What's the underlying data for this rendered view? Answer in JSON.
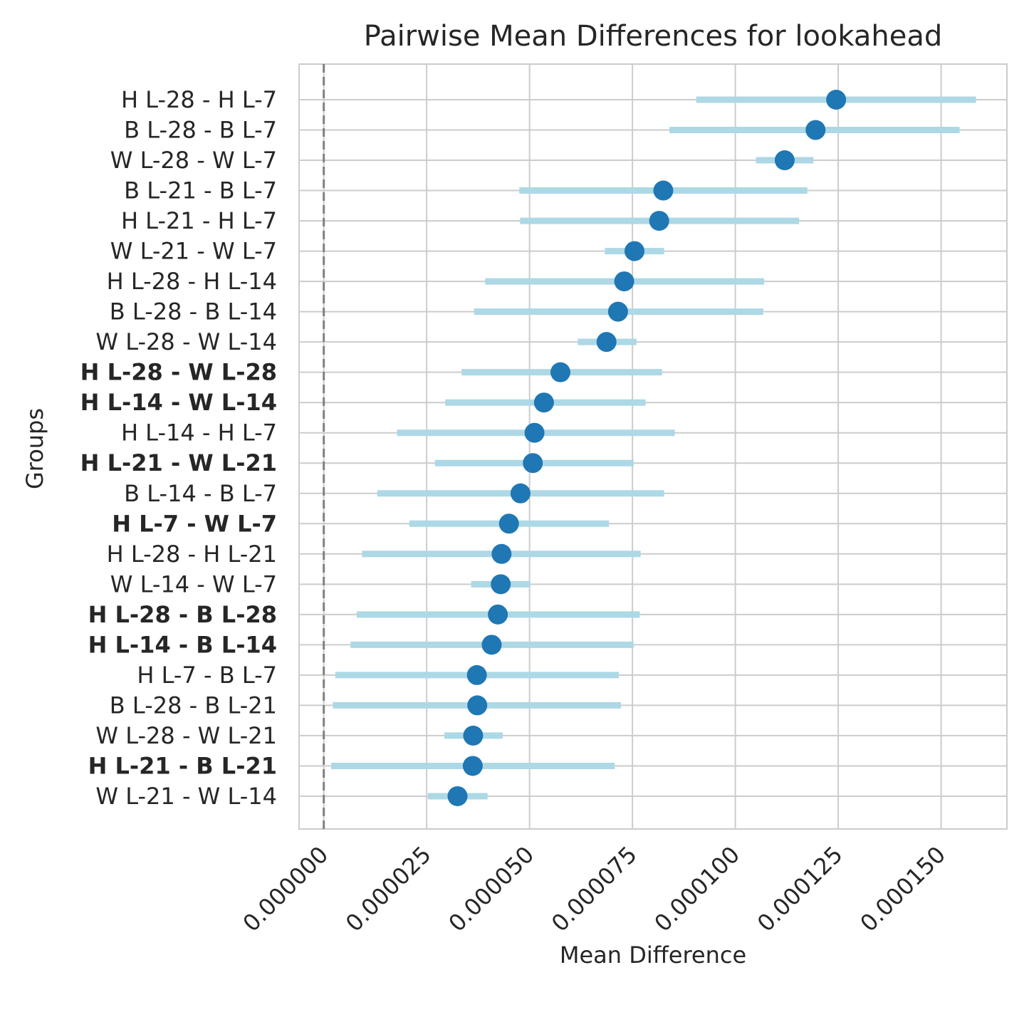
{
  "chart_data": {
    "type": "scatter",
    "subtype": "forest-plot with confidence-interval bars",
    "title": "Pairwise Mean Differences for lookahead",
    "xlabel": "Mean Difference",
    "ylabel": "Groups",
    "xlim": [
      -6e-06,
      0.000166
    ],
    "xticks": [
      0.0,
      2.5e-05,
      5e-05,
      7.5e-05,
      0.0001,
      0.000125,
      0.00015
    ],
    "xtick_labels": [
      "0.000000",
      "0.000025",
      "0.000050",
      "0.000075",
      "0.000100",
      "0.000125",
      "0.000150"
    ],
    "reference_line_x": 0.0,
    "grid": true,
    "colors": {
      "point": "#1f77b4",
      "interval": "#add8e6",
      "reference": "#808080",
      "grid": "#cccccc",
      "text": "#262626"
    },
    "groups": [
      {
        "label": "H L-28 - H L-7",
        "mean": 0.0001245,
        "lower": 9.05e-05,
        "upper": 0.0001585,
        "bold": false
      },
      {
        "label": "B L-28 - B L-7",
        "mean": 0.0001195,
        "lower": 8.4e-05,
        "upper": 0.0001545,
        "bold": false
      },
      {
        "label": "W L-28 - W L-7",
        "mean": 0.000112,
        "lower": 0.000105,
        "upper": 0.000119,
        "bold": false
      },
      {
        "label": "B L-21 - B L-7",
        "mean": 8.25e-05,
        "lower": 4.75e-05,
        "upper": 0.0001175,
        "bold": false
      },
      {
        "label": "H L-21 - H L-7",
        "mean": 8.15e-05,
        "lower": 4.77e-05,
        "upper": 0.0001155,
        "bold": false
      },
      {
        "label": "W L-21 - W L-7",
        "mean": 7.55e-05,
        "lower": 6.83e-05,
        "upper": 8.27e-05,
        "bold": false
      },
      {
        "label": "H L-28 - H L-14",
        "mean": 7.3e-05,
        "lower": 3.92e-05,
        "upper": 0.000107,
        "bold": false
      },
      {
        "label": "B L-28 - B L-14",
        "mean": 7.15e-05,
        "lower": 3.65e-05,
        "upper": 0.0001068,
        "bold": false
      },
      {
        "label": "W L-28 - W L-14",
        "mean": 6.87e-05,
        "lower": 6.17e-05,
        "upper": 7.6e-05,
        "bold": false
      },
      {
        "label": "H L-28 - W L-28",
        "mean": 5.75e-05,
        "lower": 3.35e-05,
        "upper": 8.22e-05,
        "bold": true
      },
      {
        "label": "H L-14 - W L-14",
        "mean": 5.35e-05,
        "lower": 2.95e-05,
        "upper": 7.82e-05,
        "bold": true
      },
      {
        "label": "H L-14 - H L-7",
        "mean": 5.12e-05,
        "lower": 1.78e-05,
        "upper": 8.53e-05,
        "bold": false
      },
      {
        "label": "H L-21 - W L-21",
        "mean": 5.08e-05,
        "lower": 2.7e-05,
        "upper": 7.53e-05,
        "bold": true
      },
      {
        "label": "B L-14 - B L-7",
        "mean": 4.78e-05,
        "lower": 1.3e-05,
        "upper": 8.27e-05,
        "bold": false
      },
      {
        "label": "H L-7 - W L-7",
        "mean": 4.5e-05,
        "lower": 2.08e-05,
        "upper": 6.93e-05,
        "bold": true
      },
      {
        "label": "H L-28 - H L-21",
        "mean": 4.32e-05,
        "lower": 9.3e-06,
        "upper": 7.7e-05,
        "bold": false
      },
      {
        "label": "W L-14 - W L-7",
        "mean": 4.3e-05,
        "lower": 3.58e-05,
        "upper": 5.02e-05,
        "bold": false
      },
      {
        "label": "H L-28 - B L-28",
        "mean": 4.23e-05,
        "lower": 8e-06,
        "upper": 7.68e-05,
        "bold": true
      },
      {
        "label": "H L-14 - B L-14",
        "mean": 4.08e-05,
        "lower": 6.5e-06,
        "upper": 7.53e-05,
        "bold": true
      },
      {
        "label": "H L-7 - B L-7",
        "mean": 3.72e-05,
        "lower": 2.8e-06,
        "upper": 7.17e-05,
        "bold": false
      },
      {
        "label": "B L-28 - B L-21",
        "mean": 3.73e-05,
        "lower": 2.2e-06,
        "upper": 7.22e-05,
        "bold": false
      },
      {
        "label": "W L-28 - W L-21",
        "mean": 3.63e-05,
        "lower": 2.93e-05,
        "upper": 4.35e-05,
        "bold": false
      },
      {
        "label": "H L-21 - B L-21",
        "mean": 3.62e-05,
        "lower": 1.8e-06,
        "upper": 7.07e-05,
        "bold": true
      },
      {
        "label": "W L-21 - W L-14",
        "mean": 3.25e-05,
        "lower": 2.53e-05,
        "upper": 3.98e-05,
        "bold": false
      }
    ]
  }
}
